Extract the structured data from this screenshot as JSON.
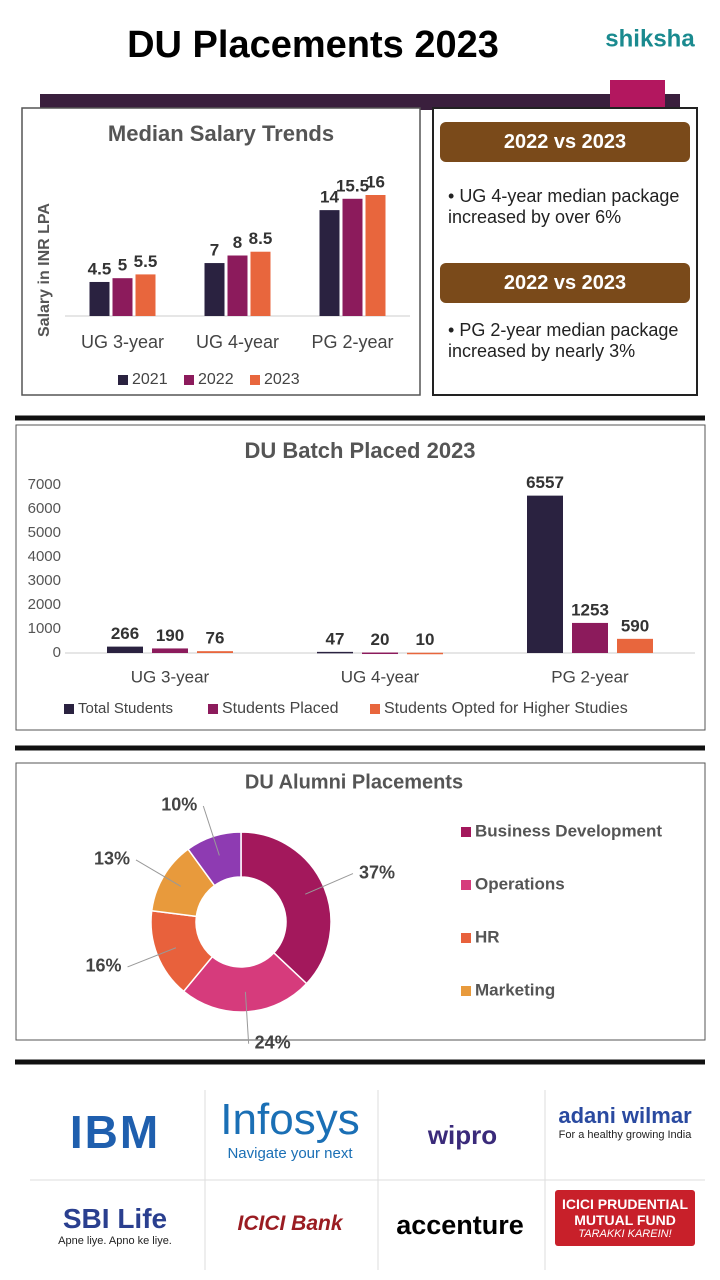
{
  "header": {
    "title": "DU Placements 2023",
    "logo": "shiksha"
  },
  "chart_data": [
    {
      "type": "bar",
      "title": "Median Salary Trends",
      "y_label": "Salary in INR LPA",
      "categories": [
        "UG 3-year",
        "UG 4-year",
        "PG 2-year"
      ],
      "series": [
        {
          "name": "2021",
          "color": "#2a2240",
          "values": [
            4.5,
            7,
            14
          ]
        },
        {
          "name": "2022",
          "color": "#8c1b5c",
          "values": [
            5,
            8,
            15.5
          ]
        },
        {
          "name": "2023",
          "color": "#e8663d",
          "values": [
            5.5,
            8.5,
            16
          ]
        }
      ]
    },
    {
      "type": "bar",
      "title": "DU Batch Placed 2023",
      "categories": [
        "UG 3-year",
        "UG 4-year",
        "PG 2-year"
      ],
      "series": [
        {
          "name": "Total Students",
          "color": "#2a2240",
          "values": [
            266,
            47,
            6557
          ]
        },
        {
          "name": "Students Placed",
          "color": "#8c1b5c",
          "values": [
            190,
            20,
            1253
          ]
        },
        {
          "name": "Students Opted for Higher Studies",
          "color": "#e8663d",
          "values": [
            76,
            10,
            590
          ]
        }
      ],
      "ylim": [
        0,
        7000
      ],
      "yticks": [
        0,
        1000,
        2000,
        3000,
        4000,
        5000,
        6000,
        7000
      ]
    },
    {
      "type": "pie",
      "title": "DU Alumni Placements",
      "categories": [
        "Business Development",
        "Operations",
        "HR",
        "Marketing",
        null
      ],
      "values": [
        37,
        24,
        16,
        13,
        10
      ],
      "value_labels": [
        "37%",
        "24%",
        "16%",
        "13%",
        "10%"
      ],
      "colors": [
        "#a3185c",
        "#d63b7c",
        "#e8613c",
        "#e89a3c",
        "#8e3bb2"
      ]
    }
  ],
  "notes": [
    {
      "heading": "2022 vs 2023",
      "text": "UG 4-year median package increased by over 6%"
    },
    {
      "heading": "2022 vs 2023",
      "text": "PG 2-year median package increased by nearly 3%"
    }
  ],
  "recruiters": [
    {
      "name": "IBM"
    },
    {
      "name": "Infosys",
      "tagline": "Navigate your next"
    },
    {
      "name": "wipro"
    },
    {
      "name": "adani wilmar",
      "tagline": "For a healthy growing India"
    },
    {
      "name": "SBI Life",
      "tagline": "Apne liye. Apno ke liye."
    },
    {
      "name": "ICICI Bank"
    },
    {
      "name": "accenture"
    },
    {
      "name": "ICICI PRUDENTIAL MUTUAL FUND",
      "tagline": "TARAKKI KAREIN!"
    }
  ]
}
